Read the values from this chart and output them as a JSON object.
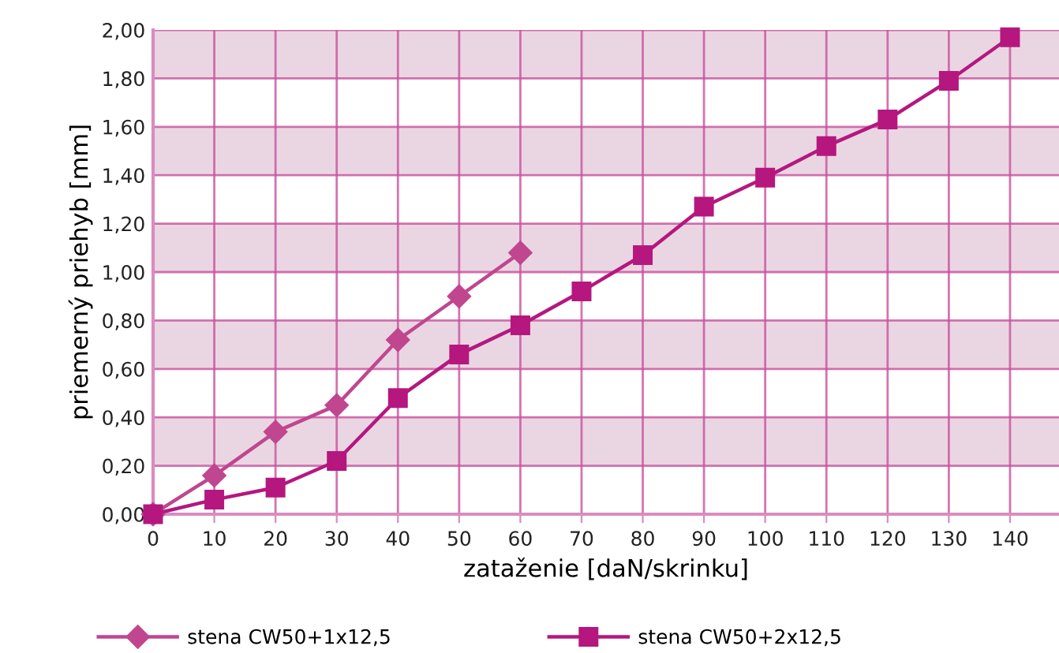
{
  "chart_data": {
    "type": "line",
    "xlabel": "zataženie [daN/skrinku]",
    "ylabel": "priemerný priehyb [mm]",
    "x": [
      0,
      10,
      20,
      30,
      40,
      50,
      60,
      70,
      80,
      90,
      100,
      110,
      120,
      130,
      140
    ],
    "series": [
      {
        "name": "stena CW50+1x12,5",
        "color": "#c0468f",
        "marker": "diamond",
        "x": [
          0,
          10,
          20,
          30,
          40,
          50,
          60
        ],
        "values": [
          0,
          0.16,
          0.34,
          0.45,
          0.72,
          0.9,
          1.08
        ]
      },
      {
        "name": "stena CW50+2x12,5",
        "color": "#b5177f",
        "marker": "square",
        "values": [
          0,
          0.06,
          0.11,
          0.22,
          0.48,
          0.66,
          0.78,
          0.92,
          1.07,
          1.27,
          1.39,
          1.52,
          1.63,
          1.79,
          1.97
        ]
      }
    ],
    "xlim": [
      0,
      148
    ],
    "xticks": [
      0,
      10,
      20,
      30,
      40,
      50,
      60,
      70,
      80,
      90,
      100,
      110,
      120,
      130,
      140
    ],
    "ylim": [
      0,
      2.0
    ],
    "yticks": [
      {
        "value": 0,
        "label": "0,00"
      },
      {
        "value": 0.2,
        "label": "0,20"
      },
      {
        "value": 0.4,
        "label": "0,40"
      },
      {
        "value": 0.6,
        "label": "0,60"
      },
      {
        "value": 0.8,
        "label": "0,80"
      },
      {
        "value": 1.0,
        "label": "1,00"
      },
      {
        "value": 1.2,
        "label": "1,20"
      },
      {
        "value": 1.4,
        "label": "1,40"
      },
      {
        "value": 1.6,
        "label": "1,60"
      },
      {
        "value": 1.8,
        "label": "1,80"
      },
      {
        "value": 2.0,
        "label": "2,00"
      }
    ],
    "bands": [
      {
        "axis": "y",
        "from": 0.2,
        "to": 0.4,
        "color": "#ead6e2"
      },
      {
        "axis": "y",
        "from": 0.6,
        "to": 0.8,
        "color": "#ead6e2"
      },
      {
        "axis": "y",
        "from": 1.0,
        "to": 1.2,
        "color": "#ead6e2"
      },
      {
        "axis": "y",
        "from": 1.4,
        "to": 1.6,
        "color": "#ead6e2"
      },
      {
        "axis": "y",
        "from": 1.8,
        "to": 2.0,
        "color": "#ead6e2"
      }
    ],
    "grid": true,
    "legend": "bottom",
    "line_style": "solid"
  }
}
